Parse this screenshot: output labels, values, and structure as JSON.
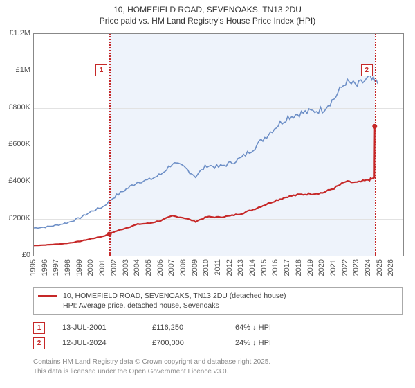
{
  "title": {
    "line1": "10, HOMEFIELD ROAD, SEVENOAKS, TN13 2DU",
    "line2": "Price paid vs. HM Land Registry's House Price Index (HPI)"
  },
  "chart": {
    "type": "line",
    "xlim": [
      1995,
      2027
    ],
    "ylim": [
      0,
      1200000
    ],
    "y_ticks": [
      0,
      200000,
      400000,
      600000,
      800000,
      1000000,
      1200000
    ],
    "y_tick_labels": [
      "£0",
      "£200K",
      "£400K",
      "£600K",
      "£800K",
      "£1M",
      "£1.2M"
    ],
    "x_ticks": [
      1995,
      1996,
      1997,
      1998,
      1999,
      2000,
      2001,
      2002,
      2003,
      2004,
      2005,
      2006,
      2007,
      2008,
      2009,
      2010,
      2011,
      2012,
      2013,
      2014,
      2015,
      2016,
      2017,
      2018,
      2019,
      2020,
      2021,
      2022,
      2023,
      2024,
      2025,
      2026
    ],
    "background_color": "#ffffff",
    "grid_color": "#e2e2e2",
    "shaded_band": {
      "x_start": 2001.53,
      "x_end": 2024.53,
      "fill": "#eef3fb"
    },
    "vlines": [
      {
        "x": 2001.53,
        "color": "#c62828",
        "style": "dotted"
      },
      {
        "x": 2024.53,
        "color": "#c62828",
        "style": "dotted"
      }
    ],
    "markers": [
      {
        "id": "1",
        "x": 2001.53,
        "y_offset": 44
      },
      {
        "id": "2",
        "x": 2024.53,
        "y_offset": 44
      }
    ],
    "series": [
      {
        "name": "hpi",
        "color": "#6d8fc7",
        "width": 1.6,
        "data": [
          [
            1995,
            150000
          ],
          [
            1996,
            155000
          ],
          [
            1997,
            165000
          ],
          [
            1998,
            180000
          ],
          [
            1999,
            205000
          ],
          [
            2000,
            240000
          ],
          [
            2001,
            265000
          ],
          [
            2002,
            320000
          ],
          [
            2003,
            360000
          ],
          [
            2004,
            400000
          ],
          [
            2005,
            410000
          ],
          [
            2006,
            440000
          ],
          [
            2007,
            500000
          ],
          [
            2008,
            480000
          ],
          [
            2009,
            430000
          ],
          [
            2010,
            490000
          ],
          [
            2011,
            480000
          ],
          [
            2012,
            500000
          ],
          [
            2013,
            530000
          ],
          [
            2014,
            580000
          ],
          [
            2015,
            640000
          ],
          [
            2016,
            700000
          ],
          [
            2017,
            750000
          ],
          [
            2018,
            770000
          ],
          [
            2019,
            780000
          ],
          [
            2020,
            790000
          ],
          [
            2021,
            850000
          ],
          [
            2022,
            940000
          ],
          [
            2023,
            920000
          ],
          [
            2024,
            960000
          ],
          [
            2024.8,
            930000
          ]
        ]
      },
      {
        "name": "prop",
        "color": "#c62828",
        "width": 2.2,
        "data": [
          [
            1995,
            55000
          ],
          [
            1996,
            58000
          ],
          [
            1997,
            62000
          ],
          [
            1998,
            68000
          ],
          [
            1999,
            78000
          ],
          [
            2000,
            92000
          ],
          [
            2001,
            105000
          ],
          [
            2001.53,
            116250
          ],
          [
            2002,
            130000
          ],
          [
            2003,
            150000
          ],
          [
            2004,
            170000
          ],
          [
            2005,
            175000
          ],
          [
            2006,
            190000
          ],
          [
            2007,
            215000
          ],
          [
            2008,
            205000
          ],
          [
            2009,
            185000
          ],
          [
            2010,
            210000
          ],
          [
            2011,
            208000
          ],
          [
            2012,
            215000
          ],
          [
            2013,
            228000
          ],
          [
            2014,
            250000
          ],
          [
            2015,
            275000
          ],
          [
            2016,
            300000
          ],
          [
            2017,
            320000
          ],
          [
            2018,
            330000
          ],
          [
            2019,
            335000
          ],
          [
            2020,
            340000
          ],
          [
            2021,
            365000
          ],
          [
            2022,
            400000
          ],
          [
            2023,
            395000
          ],
          [
            2024,
            410000
          ],
          [
            2024.5,
            420000
          ],
          [
            2024.53,
            700000
          ]
        ]
      }
    ],
    "sale_points": [
      {
        "x": 2001.53,
        "y": 116250,
        "color": "#c62828",
        "r": 3.5
      },
      {
        "x": 2024.53,
        "y": 700000,
        "color": "#c62828",
        "r": 3.5
      }
    ]
  },
  "legend": {
    "items": [
      {
        "color": "#c62828",
        "width": 2.2,
        "label": "10, HOMEFIELD ROAD, SEVENOAKS, TN13 2DU (detached house)"
      },
      {
        "color": "#6d8fc7",
        "width": 1.6,
        "label": "HPI: Average price, detached house, Sevenoaks"
      }
    ]
  },
  "sales": [
    {
      "marker": "1",
      "date": "13-JUL-2001",
      "price": "£116,250",
      "diff": "64% ↓ HPI"
    },
    {
      "marker": "2",
      "date": "12-JUL-2024",
      "price": "£700,000",
      "diff": "24% ↓ HPI"
    }
  ],
  "footer": {
    "line1": "Contains HM Land Registry data © Crown copyright and database right 2025.",
    "line2": "This data is licensed under the Open Government Licence v3.0."
  }
}
